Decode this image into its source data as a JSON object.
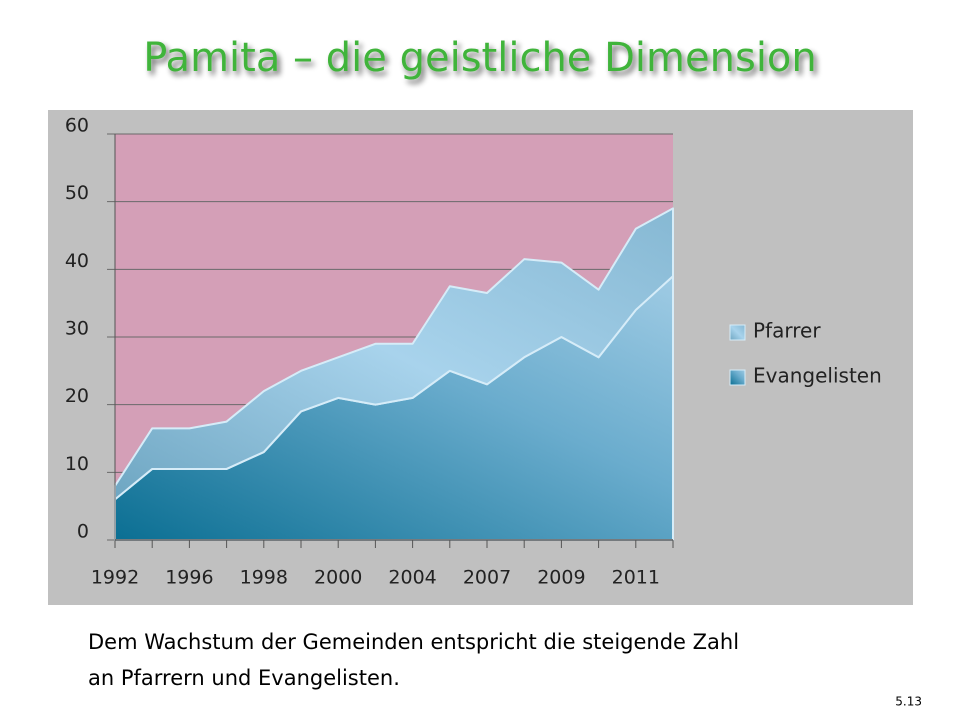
{
  "title": "Pamita – die geistliche Dimension",
  "caption": [
    "Dem Wachstum der Gemeinden entspricht die steigende Zahl",
    "an Pfarrern und Evangelisten."
  ],
  "page_number": "5.13",
  "chart_data": {
    "type": "stacked_area",
    "categories": [
      "1992",
      null,
      "1996",
      null,
      "1998",
      null,
      "2000",
      null,
      "2004",
      null,
      "2007",
      null,
      "2009",
      null,
      "2011",
      null
    ],
    "series": [
      {
        "name": "Evangelisten",
        "color": "#1f7fa0",
        "values": [
          6,
          10.5,
          10.5,
          10.5,
          13,
          19,
          21,
          20,
          21,
          25,
          23,
          27,
          30,
          27,
          34,
          39
        ]
      },
      {
        "name": "Pfarrer",
        "color": "#8cc4e2",
        "values": [
          2,
          6,
          6,
          7,
          9,
          6,
          6,
          9,
          8,
          12.5,
          13.5,
          14.5,
          11,
          10,
          12,
          10
        ]
      }
    ],
    "legend_order": [
      "Pfarrer",
      "Evangelisten"
    ],
    "ylim": [
      0,
      60
    ],
    "yticks": [
      0,
      10,
      20,
      30,
      40,
      50,
      60
    ],
    "grid": true,
    "legend": "right",
    "plot_background": "#d49fb7",
    "panel_background": "#c0c0c0"
  }
}
